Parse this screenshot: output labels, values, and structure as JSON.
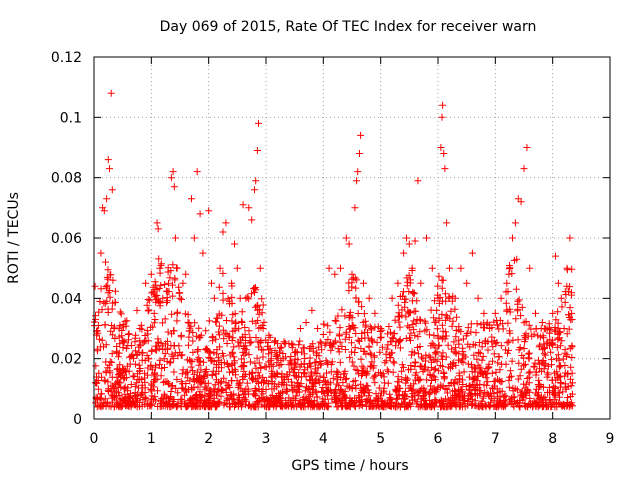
{
  "chart_data": {
    "type": "scatter",
    "title": "Day 069 of 2015, Rate Of TEC Index for receiver warn",
    "xlabel": "GPS time / hours",
    "ylabel": "ROTI / TECUs",
    "xlim": [
      0,
      9
    ],
    "ylim": [
      0,
      0.12
    ],
    "x_ticks": [
      0,
      1,
      2,
      3,
      4,
      5,
      6,
      7,
      8,
      9
    ],
    "y_ticks": [
      0,
      0.02,
      0.04,
      0.06,
      0.08,
      0.1,
      0.12
    ],
    "x_tick_labels": [
      "0",
      "1",
      "2",
      "3",
      "4",
      "5",
      "6",
      "7",
      "8",
      "9"
    ],
    "y_tick_labels": [
      "0",
      "0.02",
      "0.04",
      "0.06",
      "0.08",
      "0.1",
      "0.12"
    ],
    "grid": true,
    "marker": "+",
    "color": "#ff0000",
    "series": [
      {
        "name": "ROTI",
        "note": "dense scatter; representative points read from figure",
        "points": [
          [
            0.02,
            0.044
          ],
          [
            0.05,
            0.012
          ],
          [
            0.08,
            0.031
          ],
          [
            0.12,
            0.055
          ],
          [
            0.15,
            0.07
          ],
          [
            0.18,
            0.069
          ],
          [
            0.2,
            0.052
          ],
          [
            0.22,
            0.073
          ],
          [
            0.25,
            0.086
          ],
          [
            0.27,
            0.083
          ],
          [
            0.3,
            0.108
          ],
          [
            0.32,
            0.076
          ],
          [
            0.35,
            0.03
          ],
          [
            0.4,
            0.022
          ],
          [
            0.45,
            0.018
          ],
          [
            0.5,
            0.026
          ],
          [
            0.55,
            0.016
          ],
          [
            0.6,
            0.028
          ],
          [
            0.7,
            0.014
          ],
          [
            0.75,
            0.036
          ],
          [
            0.8,
            0.03
          ],
          [
            0.85,
            0.022
          ],
          [
            0.9,
            0.045
          ],
          [
            0.95,
            0.02
          ],
          [
            1.0,
            0.048
          ],
          [
            1.05,
            0.035
          ],
          [
            1.1,
            0.065
          ],
          [
            1.12,
            0.063
          ],
          [
            1.15,
            0.05
          ],
          [
            1.2,
            0.04
          ],
          [
            1.3,
            0.045
          ],
          [
            1.35,
            0.08
          ],
          [
            1.38,
            0.082
          ],
          [
            1.4,
            0.077
          ],
          [
            1.42,
            0.06
          ],
          [
            1.45,
            0.035
          ],
          [
            1.5,
            0.04
          ],
          [
            1.55,
            0.045
          ],
          [
            1.6,
            0.048
          ],
          [
            1.7,
            0.073
          ],
          [
            1.75,
            0.06
          ],
          [
            1.8,
            0.082
          ],
          [
            1.85,
            0.068
          ],
          [
            1.9,
            0.055
          ],
          [
            2.0,
            0.069
          ],
          [
            2.05,
            0.045
          ],
          [
            2.1,
            0.04
          ],
          [
            2.2,
            0.05
          ],
          [
            2.25,
            0.062
          ],
          [
            2.3,
            0.065
          ],
          [
            2.4,
            0.045
          ],
          [
            2.45,
            0.058
          ],
          [
            2.5,
            0.05
          ],
          [
            2.55,
            0.04
          ],
          [
            2.6,
            0.071
          ],
          [
            2.65,
            0.04
          ],
          [
            2.7,
            0.07
          ],
          [
            2.75,
            0.066
          ],
          [
            2.8,
            0.076
          ],
          [
            2.82,
            0.079
          ],
          [
            2.85,
            0.089
          ],
          [
            2.87,
            0.098
          ],
          [
            2.9,
            0.05
          ],
          [
            2.95,
            0.03
          ],
          [
            3.1,
            0.022
          ],
          [
            3.2,
            0.025
          ],
          [
            3.3,
            0.02
          ],
          [
            3.4,
            0.025
          ],
          [
            3.5,
            0.022
          ],
          [
            3.6,
            0.03
          ],
          [
            3.7,
            0.032
          ],
          [
            3.8,
            0.036
          ],
          [
            3.9,
            0.03
          ],
          [
            4.0,
            0.028
          ],
          [
            4.1,
            0.05
          ],
          [
            4.2,
            0.048
          ],
          [
            4.3,
            0.05
          ],
          [
            4.4,
            0.06
          ],
          [
            4.45,
            0.058
          ],
          [
            4.5,
            0.048
          ],
          [
            4.55,
            0.07
          ],
          [
            4.58,
            0.079
          ],
          [
            4.6,
            0.082
          ],
          [
            4.63,
            0.088
          ],
          [
            4.65,
            0.094
          ],
          [
            4.7,
            0.045
          ],
          [
            4.8,
            0.04
          ],
          [
            4.9,
            0.035
          ],
          [
            5.0,
            0.03
          ],
          [
            5.2,
            0.04
          ],
          [
            5.3,
            0.045
          ],
          [
            5.4,
            0.055
          ],
          [
            5.45,
            0.06
          ],
          [
            5.5,
            0.058
          ],
          [
            5.55,
            0.05
          ],
          [
            5.6,
            0.059
          ],
          [
            5.65,
            0.079
          ],
          [
            5.7,
            0.045
          ],
          [
            5.8,
            0.06
          ],
          [
            5.9,
            0.05
          ],
          [
            6.0,
            0.04
          ],
          [
            6.05,
            0.09
          ],
          [
            6.07,
            0.1
          ],
          [
            6.08,
            0.104
          ],
          [
            6.1,
            0.088
          ],
          [
            6.12,
            0.083
          ],
          [
            6.15,
            0.065
          ],
          [
            6.2,
            0.05
          ],
          [
            6.3,
            0.04
          ],
          [
            6.4,
            0.05
          ],
          [
            6.5,
            0.045
          ],
          [
            6.6,
            0.055
          ],
          [
            6.7,
            0.04
          ],
          [
            6.8,
            0.035
          ],
          [
            6.9,
            0.03
          ],
          [
            7.0,
            0.035
          ],
          [
            7.1,
            0.04
          ],
          [
            7.2,
            0.045
          ],
          [
            7.25,
            0.05
          ],
          [
            7.3,
            0.06
          ],
          [
            7.35,
            0.065
          ],
          [
            7.4,
            0.073
          ],
          [
            7.45,
            0.072
          ],
          [
            7.5,
            0.083
          ],
          [
            7.55,
            0.09
          ],
          [
            7.6,
            0.05
          ],
          [
            7.7,
            0.035
          ],
          [
            7.8,
            0.03
          ],
          [
            7.9,
            0.025
          ],
          [
            8.0,
            0.035
          ],
          [
            8.05,
            0.054
          ],
          [
            8.1,
            0.045
          ],
          [
            8.15,
            0.04
          ],
          [
            8.2,
            0.03
          ],
          [
            8.25,
            0.05
          ],
          [
            8.3,
            0.06
          ],
          [
            8.33,
            0.035
          ]
        ]
      }
    ]
  }
}
